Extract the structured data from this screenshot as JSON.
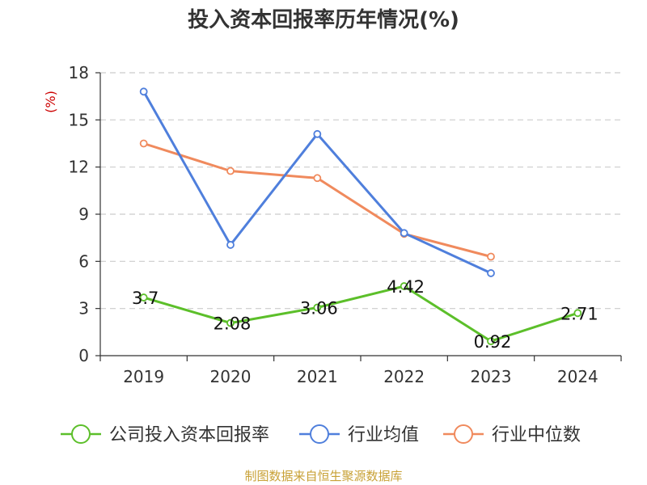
{
  "colors": {
    "company": "#5cbf2a",
    "industry_avg": "#4f7fdc",
    "industry_median": "#f08a5d",
    "grid": "#cccccc",
    "axis": "#333333",
    "unit": "#cc0000",
    "source": "#c8a136"
  },
  "chart_data": {
    "type": "line",
    "title": "投入资本回报率历年情况(%)",
    "ylabel": "(%)",
    "xlabel": "",
    "categories": [
      "2019",
      "2020",
      "2021",
      "2022",
      "2023",
      "2024"
    ],
    "ylim": [
      0,
      18
    ],
    "yticks": [
      "0",
      "3",
      "6",
      "9",
      "12",
      "15",
      "18"
    ],
    "grid": true,
    "legend_position": "bottom",
    "series": [
      {
        "name": "公司投入资本回报率",
        "color_key": "company",
        "values": [
          3.7,
          2.08,
          3.06,
          4.42,
          0.92,
          2.71
        ],
        "labels": [
          "3.7",
          "2.08",
          "3.06",
          "4.42",
          "0.92",
          "2.71"
        ]
      },
      {
        "name": "行业均值",
        "color_key": "industry_avg",
        "values": [
          16.8,
          7.05,
          14.1,
          7.8,
          5.25,
          null
        ]
      },
      {
        "name": "行业中位数",
        "color_key": "industry_median",
        "values": [
          13.5,
          11.75,
          11.3,
          7.75,
          6.3,
          null
        ]
      }
    ]
  },
  "source_text": "制图数据来自恒生聚源数据库"
}
